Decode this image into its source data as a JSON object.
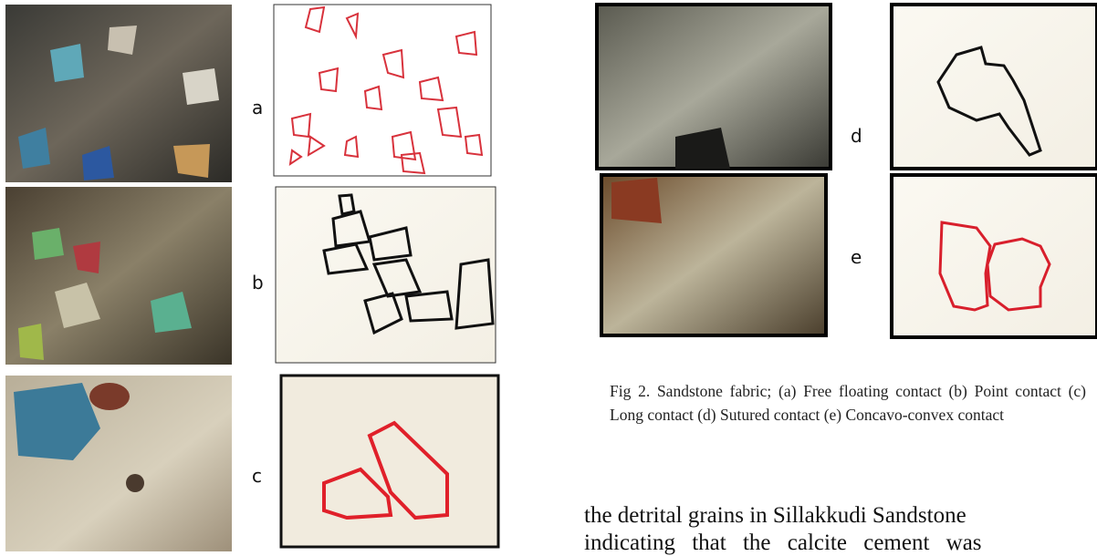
{
  "figure": {
    "panels": [
      {
        "label": "a"
      },
      {
        "label": "b"
      },
      {
        "label": "c"
      },
      {
        "label": "d"
      },
      {
        "label": "e"
      }
    ]
  },
  "caption": "Fig 2.  Sandstone fabric; (a) Free floating contact (b) Point contact (c) Long contact (d) Sutured contact (e) Concavo-convex contact",
  "body": [
    "the detrital grains in Sillakkudi Sandstone",
    "indicating that the calcite cement was"
  ]
}
